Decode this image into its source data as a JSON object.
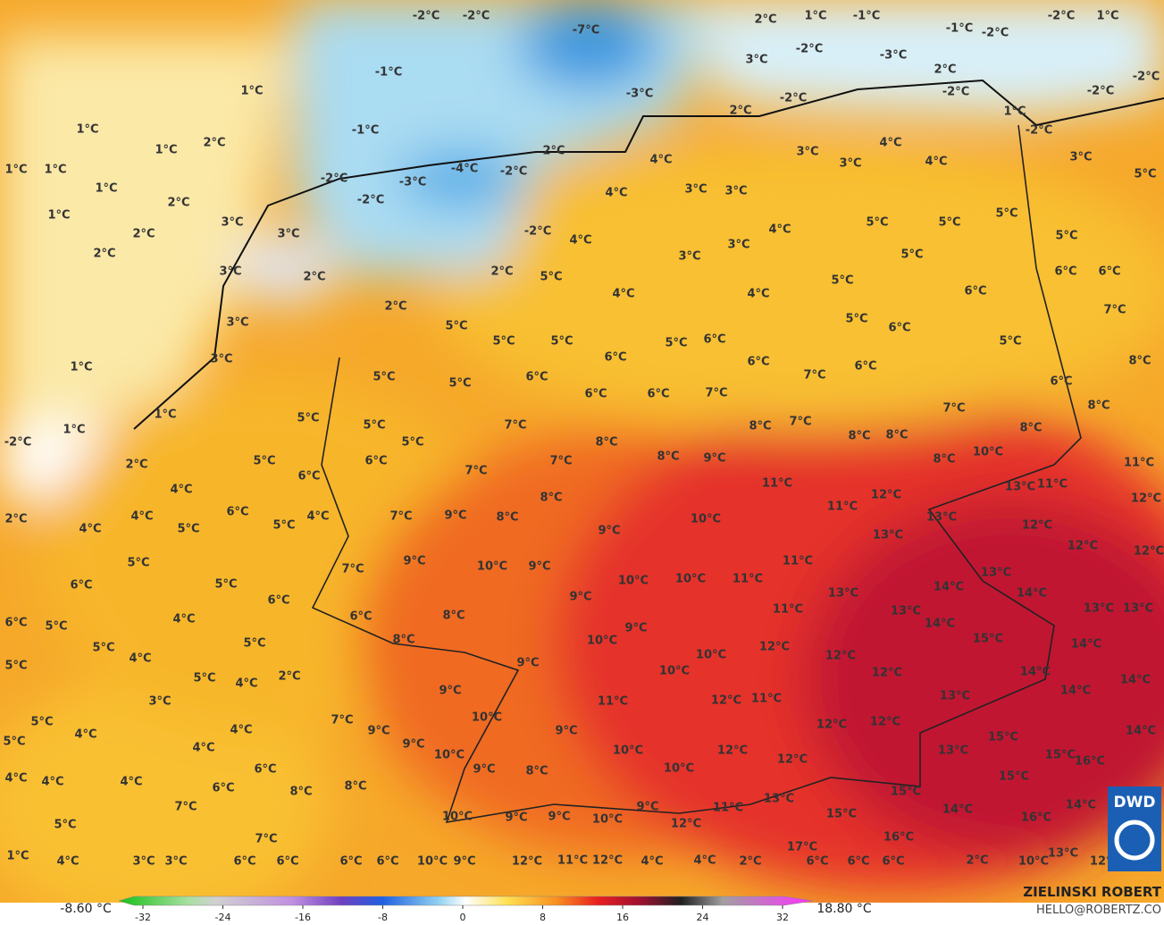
{
  "map": {
    "labels": [
      "-2°C",
      "-2°C",
      "-7°C",
      "-1°C",
      "-3°C",
      "-1°C",
      "-4°C",
      "-3°C",
      "-2°C",
      "-2°C",
      "-2°C",
      "-2°C",
      "1°C",
      "1°C",
      "1°C",
      "2°C",
      "1°C",
      "1°C",
      "1°C",
      "2°C",
      "1°C",
      "3°C",
      "2°C",
      "2°C",
      "3°C",
      "3°C",
      "2°C",
      "3°C",
      "2°C",
      "3°C",
      "1°C",
      "1°C",
      "1°C",
      "-2°C",
      "2°C",
      "2°C",
      "1°C",
      "-1°C",
      "-2°C",
      "3°C",
      "-2°C",
      "1°C",
      "-1°C",
      "-2°C",
      "-3°C",
      "2°C",
      "-2°C",
      "-2°C",
      "-2°C",
      "1°C",
      "-2°C",
      "2°C",
      "-2°C",
      "2°C",
      "4°C",
      "4°C",
      "3°C",
      "3°C",
      "3°C",
      "3°C",
      "4°C",
      "4°C",
      "3°C",
      "5°C",
      "4°C",
      "4°C",
      "3°C",
      "3°C",
      "5°C",
      "5°C",
      "5°C",
      "5°C",
      "5°C",
      "2°C",
      "5°C",
      "4°C",
      "4°C",
      "5°C",
      "6°C",
      "6°C",
      "6°C",
      "7°C",
      "5°C",
      "6°C",
      "5°C",
      "8°C",
      "5°C",
      "5°C",
      "5°C",
      "5°C",
      "6°C",
      "6°C",
      "6°C",
      "7°C",
      "6°C",
      "6°C",
      "5°C",
      "5°C",
      "6°C",
      "6°C",
      "6°C",
      "7°C",
      "7°C",
      "8°C",
      "5°C",
      "5°C",
      "5°C",
      "7°C",
      "8°C",
      "7°C",
      "8°C",
      "8°C",
      "8°C",
      "6°C",
      "8°C",
      "8°C",
      "9°C",
      "7°C",
      "8°C",
      "10°C",
      "5°C",
      "6°C",
      "7°C",
      "11°C",
      "12°C",
      "13°C",
      "11°C",
      "11°C",
      "12°C",
      "4°C",
      "4°C",
      "6°C",
      "4°C",
      "5°C",
      "2°C",
      "4°C",
      "5°C",
      "7°C",
      "9°C",
      "8°C",
      "8°C",
      "10°C",
      "11°C",
      "13°C",
      "12°C",
      "9°C",
      "13°C",
      "12°C",
      "12°C",
      "5°C",
      "7°C",
      "9°C",
      "10°C",
      "9°C",
      "11°C",
      "13°C",
      "6°C",
      "5°C",
      "9°C",
      "10°C",
      "10°C",
      "11°C",
      "13°C",
      "14°C",
      "14°C",
      "6°C",
      "6°C",
      "8°C",
      "13°C",
      "11°C",
      "14°C",
      "13°C",
      "13°C",
      "6°C",
      "5°C",
      "4°C",
      "9°C",
      "10°C",
      "12°C",
      "15°C",
      "14°C",
      "5°C",
      "5°C",
      "8°C",
      "12°C",
      "10°C",
      "4°C",
      "9°C",
      "10°C",
      "12°C",
      "14°C",
      "14°C",
      "5°C",
      "5°C",
      "4°C",
      "2°C",
      "9°C",
      "11°C",
      "12°C",
      "11°C",
      "13°C",
      "14°C",
      "3°C",
      "10°C",
      "7°C",
      "5°C",
      "4°C",
      "4°C",
      "9°C",
      "9°C",
      "12°C",
      "12°C",
      "15°C",
      "14°C",
      "5°C",
      "4°C",
      "9°C",
      "10°C",
      "10°C",
      "12°C",
      "12°C",
      "13°C",
      "15°C",
      "16°C",
      "6°C",
      "9°C",
      "8°C",
      "10°C",
      "4°C",
      "4°C",
      "4°C",
      "6°C",
      "8°C",
      "8°C",
      "13°C",
      "15°C",
      "15°C",
      "7°C",
      "9°C",
      "11°C",
      "15°C",
      "14°C",
      "16°C",
      "14°C",
      "5°C",
      "10°C",
      "9°C",
      "9°C",
      "10°C",
      "12°C",
      "7°C",
      "16°C",
      "17°C",
      "13°C",
      "1°C",
      "4°C",
      "3°C",
      "3°C",
      "6°C",
      "6°C",
      "6°C",
      "6°C",
      "10°C",
      "9°C",
      "12°C",
      "11°C",
      "12°C",
      "4°C",
      "4°C",
      "2°C",
      "6°C",
      "6°C",
      "6°C",
      "2°C",
      "10°C",
      "12°C"
    ]
  },
  "legend": {
    "min_label": "-8.60 °C",
    "max_label": "18.80 °C",
    "ticks": [
      -32,
      -24,
      -16,
      -8,
      0,
      8,
      16,
      24,
      32
    ]
  },
  "credits": {
    "name": "ZIELINSKI ROBERT",
    "email": "HELLO@ROBERTZ.CO",
    "logo": "DWD"
  }
}
